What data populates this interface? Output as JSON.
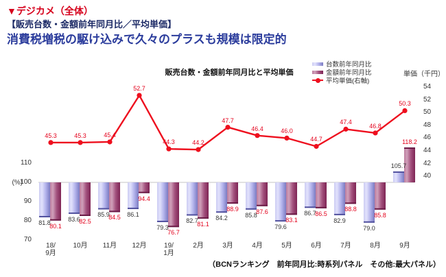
{
  "header": {
    "section_label": "▼デジカメ（全体）",
    "subtitle": "【販売台数・金額前年同月比／平均単価】",
    "headline": "消費税増税の駆け込みで久々のプラスも規模は限定的"
  },
  "chart_data": {
    "type": "bar+line",
    "title": "販売台数・金額前年同月比と平均単価",
    "categories": [
      "18/\n9月",
      "10月",
      "11月",
      "12月",
      "19/\n1月",
      "2月",
      "3月",
      "4月",
      "5月",
      "6月",
      "7月",
      "8月",
      "9月"
    ],
    "series": [
      {
        "name": "台数前年同月比",
        "type": "bar",
        "axis": "left",
        "color": "#b4b4ec",
        "values": [
          81.8,
          83.6,
          85.9,
          86.1,
          79.3,
          82.7,
          84.2,
          85.8,
          79.6,
          86.7,
          82.9,
          79.0,
          105.7
        ]
      },
      {
        "name": "金額前年同月比",
        "type": "bar",
        "axis": "left",
        "color": "#a3527e",
        "values": [
          80.1,
          82.5,
          84.5,
          94.4,
          76.7,
          81.1,
          88.9,
          87.6,
          83.1,
          86.5,
          88.8,
          85.8,
          118.2
        ]
      },
      {
        "name": "平均単価(右軸)",
        "type": "line",
        "axis": "right",
        "color": "#ee0f1e",
        "values": [
          45.3,
          45.3,
          45.4,
          52.7,
          44.3,
          44.2,
          47.7,
          46.4,
          46.0,
          44.7,
          47.4,
          46.8,
          50.3
        ]
      }
    ],
    "left_axis": {
      "label": "(%)",
      "ticks": [
        110,
        100,
        90,
        80,
        70
      ],
      "baseline": 100,
      "range": [
        70,
        110
      ]
    },
    "right_axis": {
      "label": "単価（千円）",
      "ticks": [
        54,
        52,
        50,
        48,
        46,
        44,
        42,
        40
      ],
      "range": [
        40,
        54
      ]
    },
    "grid": "off",
    "legend_position": "top-right"
  },
  "footer": {
    "note": "（BCNランキング　前年同月比:時系列パネル　その他:最大パネル）"
  }
}
